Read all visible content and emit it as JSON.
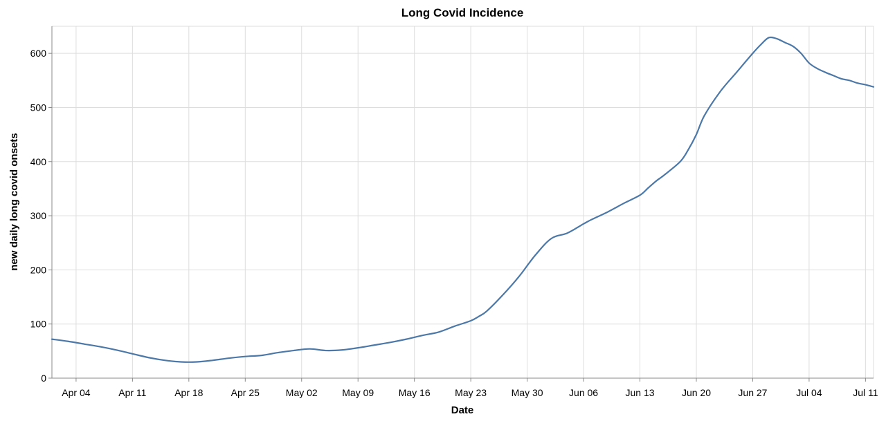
{
  "chart_data": {
    "type": "line",
    "title": "Long Covid Incidence",
    "xlabel": "Date",
    "ylabel": "new daily long covid onsets",
    "x_type": "date",
    "year": 2021,
    "xlim": [
      "2021-04-01",
      "2021-07-12"
    ],
    "ylim": [
      0,
      650
    ],
    "y_ticks": [
      0,
      100,
      200,
      300,
      400,
      500,
      600
    ],
    "x_ticks": [
      {
        "date": "2021-04-04",
        "label": "Apr 04"
      },
      {
        "date": "2021-04-11",
        "label": "Apr 11"
      },
      {
        "date": "2021-04-18",
        "label": "Apr 18"
      },
      {
        "date": "2021-04-25",
        "label": "Apr 25"
      },
      {
        "date": "2021-05-02",
        "label": "May 02"
      },
      {
        "date": "2021-05-09",
        "label": "May 09"
      },
      {
        "date": "2021-05-16",
        "label": "May 16"
      },
      {
        "date": "2021-05-23",
        "label": "May 23"
      },
      {
        "date": "2021-05-30",
        "label": "May 30"
      },
      {
        "date": "2021-06-06",
        "label": "Jun 06"
      },
      {
        "date": "2021-06-13",
        "label": "Jun 13"
      },
      {
        "date": "2021-06-20",
        "label": "Jun 20"
      },
      {
        "date": "2021-06-27",
        "label": "Jun 27"
      },
      {
        "date": "2021-07-04",
        "label": "Jul 04"
      },
      {
        "date": "2021-07-11",
        "label": "Jul 11"
      }
    ],
    "grid": true,
    "colors": {
      "line": "#4c78a8"
    },
    "series": [
      {
        "x": [
          "2021-04-01",
          "2021-04-03",
          "2021-04-05",
          "2021-04-07",
          "2021-04-09",
          "2021-04-11",
          "2021-04-13",
          "2021-04-15",
          "2021-04-17",
          "2021-04-19",
          "2021-04-21",
          "2021-04-23",
          "2021-04-25",
          "2021-04-27",
          "2021-04-29",
          "2021-05-01",
          "2021-05-03",
          "2021-05-05",
          "2021-05-07",
          "2021-05-09",
          "2021-05-11",
          "2021-05-13",
          "2021-05-15",
          "2021-05-17",
          "2021-05-19",
          "2021-05-21",
          "2021-05-23",
          "2021-05-24",
          "2021-05-25",
          "2021-05-27",
          "2021-05-29",
          "2021-05-31",
          "2021-06-02",
          "2021-06-04",
          "2021-06-06",
          "2021-06-07",
          "2021-06-09",
          "2021-06-11",
          "2021-06-13",
          "2021-06-14",
          "2021-06-15",
          "2021-06-16",
          "2021-06-18",
          "2021-06-19",
          "2021-06-20",
          "2021-06-21",
          "2021-06-23",
          "2021-06-25",
          "2021-06-27",
          "2021-06-28",
          "2021-06-29",
          "2021-06-30",
          "2021-07-01",
          "2021-07-02",
          "2021-07-03",
          "2021-07-04",
          "2021-07-05",
          "2021-07-06",
          "2021-07-07",
          "2021-07-08",
          "2021-07-09",
          "2021-07-10",
          "2021-07-11",
          "2021-07-12"
        ],
        "y": [
          72,
          68,
          63,
          58,
          52,
          45,
          38,
          33,
          30,
          30,
          33,
          37,
          40,
          42,
          47,
          51,
          54,
          51,
          52,
          56,
          61,
          66,
          72,
          79,
          85,
          96,
          106,
          114,
          124,
          154,
          188,
          227,
          258,
          268,
          285,
          293,
          307,
          323,
          338,
          351,
          364,
          375,
          400,
          422,
          450,
          485,
          530,
          565,
          600,
          616,
          629,
          627,
          620,
          613,
          600,
          582,
          572,
          565,
          559,
          553,
          550,
          545,
          542,
          538
        ]
      }
    ]
  }
}
